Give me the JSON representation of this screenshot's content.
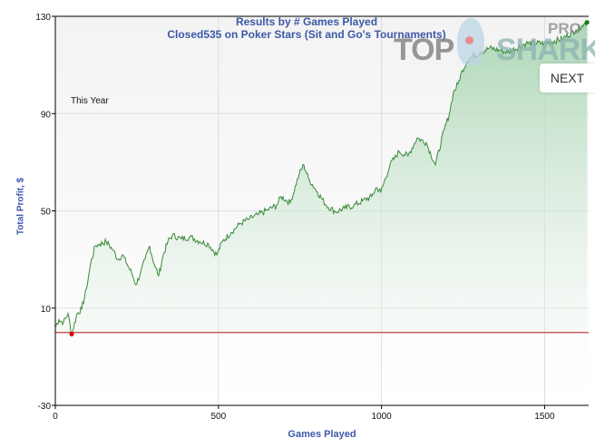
{
  "chart_data": {
    "type": "area",
    "title": "Results by # Games Played",
    "subtitle": "Closed535 on Poker Stars (Sit and Go's Tournaments)",
    "annotation": "This Year",
    "xlabel": "Games Played",
    "ylabel": "Total Profit, $",
    "xlim": [
      0,
      1635
    ],
    "ylim": [
      -30,
      130
    ],
    "xticks": [
      0,
      500,
      1000,
      1500
    ],
    "yticks": [
      -30,
      10,
      50,
      90,
      130
    ],
    "grid": true,
    "baseline": 0,
    "colors": {
      "line": "#3a8a3a",
      "fill": "#a8d5b2",
      "baseline": "#c96060",
      "min_marker": "#e00000",
      "max_marker": "#1a7a1a"
    },
    "series": [
      {
        "name": "Total Profit",
        "x": [
          0,
          11,
          25,
          39,
          50,
          67,
          81,
          95,
          108,
          122,
          136,
          156,
          178,
          192,
          206,
          220,
          234,
          247,
          261,
          275,
          289,
          303,
          317,
          331,
          345,
          359,
          386,
          414,
          442,
          470,
          495,
          512,
          539,
          567,
          595,
          623,
          651,
          678,
          692,
          720,
          748,
          762,
          776,
          803,
          831,
          859,
          887,
          915,
          942,
          970,
          984,
          998,
          1026,
          1054,
          1081,
          1109,
          1137,
          1165,
          1193,
          1207,
          1220,
          1234,
          1248,
          1262,
          1276,
          1304,
          1332,
          1387,
          1443,
          1499,
          1554,
          1596,
          1615,
          1630
        ],
        "y": [
          2.2,
          5.2,
          4.1,
          7.8,
          -0.7,
          7.8,
          9.6,
          17.8,
          28.1,
          35.6,
          36.3,
          37.4,
          33.7,
          30,
          31.9,
          28.1,
          24.4,
          19.6,
          24.4,
          30,
          35.6,
          28.1,
          23.3,
          31.9,
          37.4,
          40,
          38.5,
          39.3,
          37.4,
          36.3,
          31.9,
          37.4,
          41.1,
          44.8,
          46.7,
          48.5,
          50.4,
          52.2,
          55.9,
          53.3,
          65.2,
          68.9,
          63.3,
          57.8,
          52.2,
          49.6,
          51.1,
          52.2,
          54.1,
          55.9,
          59.6,
          57.8,
          68.9,
          74.4,
          72.6,
          80,
          78.1,
          68.9,
          83.7,
          89.3,
          98.5,
          102.2,
          107.8,
          111.5,
          113.3,
          115.2,
          117,
          115.2,
          118.9,
          118.9,
          120.7,
          124.4,
          126.3,
          127.5
        ]
      }
    ],
    "min_point": {
      "x": 50,
      "y": -0.7
    },
    "max_point": {
      "x": 1630,
      "y": 127.5
    }
  },
  "logo": {
    "text_top": "TOP",
    "text_shark": "SHARK",
    "text_pro": "PRO"
  },
  "next_label": "NEXT"
}
